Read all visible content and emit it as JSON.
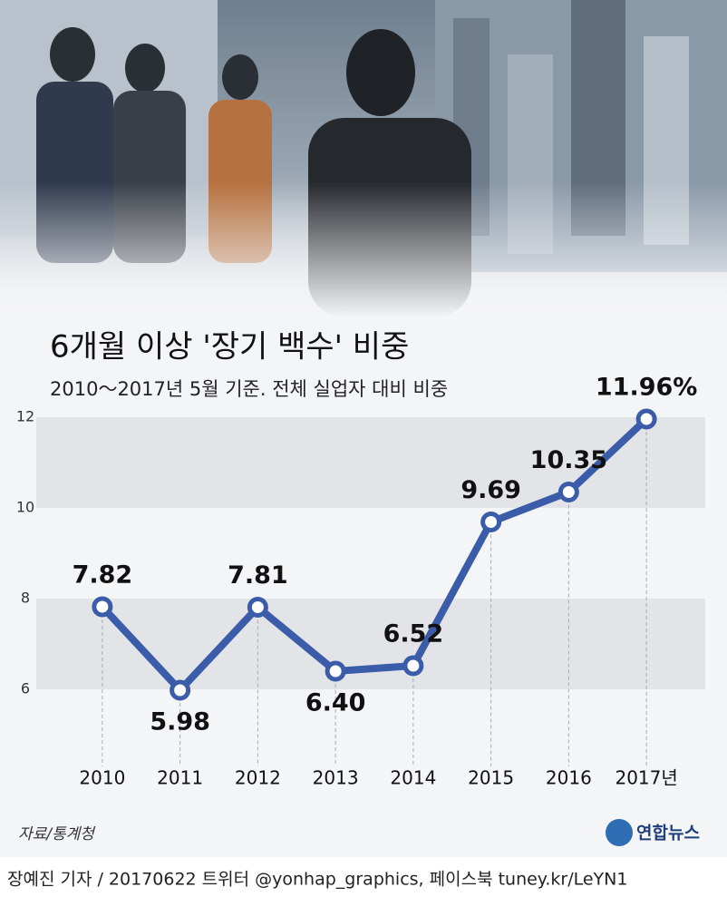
{
  "chart_data": {
    "type": "line",
    "title": "6개월 이상 '장기 백수' 비중",
    "subtitle": "2010～2017년 5월 기준. 전체 실업자 대비 비중",
    "categories": [
      "2010",
      "2011",
      "2012",
      "2013",
      "2014",
      "2015",
      "2016",
      "2017년"
    ],
    "values": [
      7.82,
      5.98,
      7.81,
      6.4,
      6.52,
      9.69,
      10.35,
      11.96
    ],
    "value_labels": [
      "7.82",
      "5.98",
      "7.81",
      "6.40",
      "6.52",
      "9.69",
      "10.35",
      "11.96%"
    ],
    "color": "#3a5ca9",
    "ylim": [
      4.4,
      12.3
    ],
    "yticks": [
      6,
      8,
      10,
      12
    ],
    "grid": "bands",
    "source": "자료/통계청",
    "logo": "연합뉴스",
    "credit": "장예진 기자 / 20170622 트위터 @yonhap_graphics, 페이스북 tuney.kr/LeYN1"
  }
}
